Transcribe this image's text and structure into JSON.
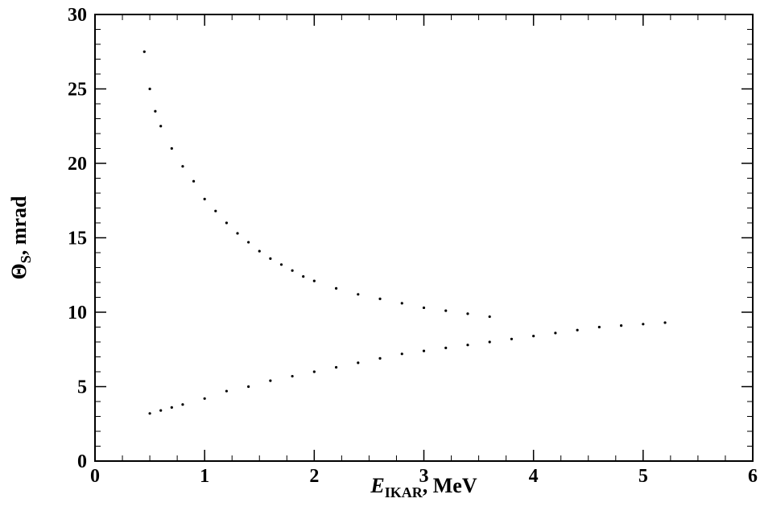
{
  "chart_data": {
    "type": "scatter",
    "title": "",
    "xlabel": {
      "symbol": "E",
      "subscript": "IKAR",
      "unit": ", MeV"
    },
    "ylabel": {
      "symbol": "Θ",
      "subscript": "S",
      "unit": ", mrad"
    },
    "xlim": [
      0,
      6
    ],
    "ylim": [
      0,
      30
    ],
    "x_ticks": [
      0,
      1,
      2,
      3,
      4,
      5,
      6
    ],
    "x_tick_labels": [
      "0",
      "1",
      "2",
      "3",
      "4",
      "5",
      "6"
    ],
    "y_ticks": [
      0,
      5,
      10,
      15,
      20,
      25,
      30
    ],
    "y_tick_labels": [
      "0",
      "5",
      "10",
      "15",
      "20",
      "25",
      "30"
    ],
    "x_minor_step": 0.25,
    "y_minor_step": 1,
    "grid": false,
    "marker_color": "#000000",
    "series": [
      {
        "points": [
          [
            0.45,
            27.5
          ],
          [
            0.5,
            25.0
          ],
          [
            0.55,
            23.5
          ],
          [
            0.6,
            22.5
          ],
          [
            0.7,
            21.0
          ],
          [
            0.8,
            19.8
          ],
          [
            0.9,
            18.8
          ],
          [
            1.0,
            17.6
          ],
          [
            1.1,
            16.8
          ],
          [
            1.2,
            16.0
          ],
          [
            1.3,
            15.3
          ],
          [
            1.4,
            14.7
          ],
          [
            1.5,
            14.1
          ],
          [
            1.6,
            13.6
          ],
          [
            1.7,
            13.2
          ],
          [
            1.8,
            12.8
          ],
          [
            1.9,
            12.4
          ],
          [
            2.0,
            12.1
          ],
          [
            2.2,
            11.6
          ],
          [
            2.4,
            11.2
          ],
          [
            2.6,
            10.9
          ],
          [
            2.8,
            10.6
          ],
          [
            3.0,
            10.3
          ],
          [
            3.2,
            10.1
          ],
          [
            3.4,
            9.9
          ],
          [
            3.6,
            9.7
          ]
        ]
      },
      {
        "points": [
          [
            0.5,
            3.2
          ],
          [
            0.6,
            3.4
          ],
          [
            0.7,
            3.6
          ],
          [
            0.8,
            3.8
          ],
          [
            1.0,
            4.2
          ],
          [
            1.2,
            4.7
          ],
          [
            1.4,
            5.0
          ],
          [
            1.6,
            5.4
          ],
          [
            1.8,
            5.7
          ],
          [
            2.0,
            6.0
          ],
          [
            2.2,
            6.3
          ],
          [
            2.4,
            6.6
          ],
          [
            2.6,
            6.9
          ],
          [
            2.8,
            7.2
          ],
          [
            3.0,
            7.4
          ],
          [
            3.2,
            7.6
          ],
          [
            3.4,
            7.8
          ],
          [
            3.6,
            8.0
          ],
          [
            3.8,
            8.2
          ],
          [
            4.0,
            8.4
          ],
          [
            4.2,
            8.6
          ],
          [
            4.4,
            8.8
          ],
          [
            4.6,
            9.0
          ],
          [
            4.8,
            9.1
          ],
          [
            5.0,
            9.2
          ],
          [
            5.2,
            9.3
          ]
        ]
      }
    ]
  }
}
